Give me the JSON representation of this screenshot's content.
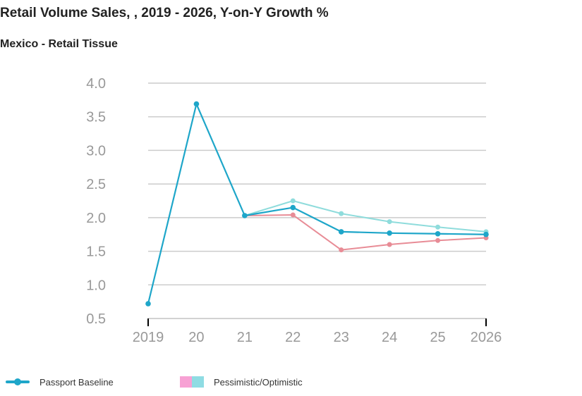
{
  "header": {
    "title": "Retail Volume Sales, , 2019 - 2026, Y-on-Y Growth %",
    "subtitle": "Mexico - Retail Tissue"
  },
  "colors": {
    "baseline": "#1ea6c9",
    "pessimistic": "#e88c96",
    "optimistic": "#8fdcdc",
    "pessimistic_swatch": "#f7a1d4",
    "optimistic_swatch": "#8fdce3",
    "grid": "#cccccc",
    "tick_text": "#999999"
  },
  "legend": {
    "baseline_label": "Passport Baseline",
    "range_label": "Pessimistic/Optimistic"
  },
  "chart_data": {
    "type": "line",
    "title": "Retail Volume Sales, , 2019 - 2026, Y-on-Y Growth %",
    "subtitle": "Mexico - Retail Tissue",
    "categories": [
      "2019",
      "20",
      "21",
      "22",
      "23",
      "24",
      "25",
      "2026"
    ],
    "ylim": [
      0.5,
      4.0
    ],
    "yticks": [
      "0.5",
      "1.0",
      "1.5",
      "2.0",
      "2.5",
      "3.0",
      "3.5",
      "4.0"
    ],
    "grid": true,
    "legend_position": "bottom-left",
    "series": [
      {
        "name": "Passport Baseline",
        "values": [
          0.72,
          3.69,
          2.03,
          2.15,
          1.79,
          1.77,
          1.76,
          1.75
        ]
      },
      {
        "name": "Pessimistic",
        "values": [
          null,
          null,
          2.03,
          2.04,
          1.52,
          1.6,
          1.66,
          1.7
        ]
      },
      {
        "name": "Optimistic",
        "values": [
          null,
          null,
          2.03,
          2.25,
          2.06,
          1.94,
          1.86,
          1.79
        ]
      }
    ]
  }
}
